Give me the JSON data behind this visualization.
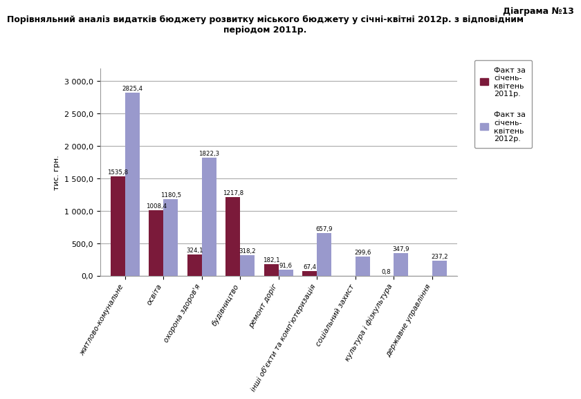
{
  "title_top": "Діаграма №13",
  "title_main": "Порівняльний аналіз видатків бюджету розвитку міського бюджету у січні-квітні 2012р. з відповідним\nперіодом 2011р.",
  "categories": [
    "житлово-комунальне",
    "освіта",
    "охорона здоров'я",
    "будівництво",
    "ремонт доріг",
    "інші об'єкти та комп'ютеризація",
    "соціальний захист",
    "культура і фізкультура",
    "державне управління"
  ],
  "series1_label": "Факт за\nсічень-\nквітень\n2011р.",
  "series2_label": "Факт за\nсічень-\nквітень\n2012р.",
  "series1_values": [
    1535.8,
    1008.4,
    324.1,
    1217.8,
    182.1,
    67.4,
    0.0,
    0.8,
    0.0
  ],
  "series2_values": [
    2825.4,
    1180.5,
    1822.3,
    318.2,
    91.6,
    657.9,
    299.6,
    347.9,
    237.2
  ],
  "series1_color": "#7B1A3A",
  "series2_color": "#9999CC",
  "bar_labels1": [
    "1535,8",
    "1008,4",
    "324,1",
    "1217,8",
    "182,1",
    "67,4",
    "",
    "0,8",
    ""
  ],
  "bar_labels2": [
    "2825,4",
    "1180,5",
    "1822,3",
    "318,2",
    "91,6",
    "657,9",
    "299,6",
    "347,9",
    "237,2"
  ],
  "ylabel": "тис. грн.",
  "ylim": [
    0,
    3200
  ],
  "yticks": [
    0.0,
    500.0,
    1000.0,
    1500.0,
    2000.0,
    2500.0,
    3000.0
  ],
  "ytick_labels": [
    "0,0",
    "500,0",
    "1 000,0",
    "1 500,0",
    "2 000,0",
    "2 500,0",
    "3 000,0"
  ],
  "bg_color": "#FFFFFF",
  "plot_bg_color": "#FFFFFF",
  "grid_color": "#AAAAAA"
}
